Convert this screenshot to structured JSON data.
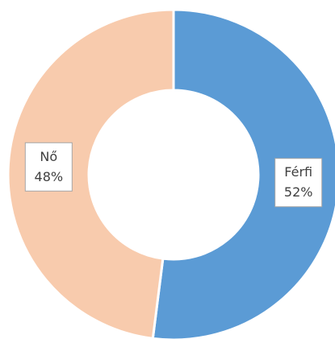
{
  "chart_data": {
    "type": "donut",
    "categories": [
      "Férfi",
      "Nő"
    ],
    "values": [
      52,
      48
    ],
    "value_labels": [
      "52%",
      "48%"
    ],
    "colors": [
      "#5b9bd5",
      "#f8cbad"
    ]
  }
}
